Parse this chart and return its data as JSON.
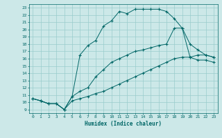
{
  "xlabel": "Humidex (Indice chaleur)",
  "bg_color": "#cce8e8",
  "grid_color": "#99cccc",
  "line_color": "#006666",
  "xlim": [
    -0.5,
    23.5
  ],
  "ylim": [
    8.5,
    23.5
  ],
  "xticks": [
    0,
    1,
    2,
    3,
    4,
    5,
    6,
    7,
    8,
    9,
    10,
    11,
    12,
    13,
    14,
    15,
    16,
    17,
    18,
    19,
    20,
    21,
    22,
    23
  ],
  "yticks": [
    9,
    10,
    11,
    12,
    13,
    14,
    15,
    16,
    17,
    18,
    19,
    20,
    21,
    22,
    23
  ],
  "line1_x": [
    0,
    1,
    2,
    3,
    4,
    5,
    6,
    7,
    8,
    9,
    10,
    11,
    12,
    13,
    14,
    15,
    16,
    17,
    18,
    19,
    20,
    21,
    22,
    23
  ],
  "line1_y": [
    10.5,
    10.2,
    9.8,
    9.8,
    9.0,
    10.8,
    16.5,
    17.8,
    18.5,
    20.5,
    21.2,
    22.5,
    22.2,
    22.8,
    22.8,
    22.8,
    22.8,
    22.5,
    21.5,
    20.2,
    18.0,
    17.2,
    16.5,
    16.2
  ],
  "line2_x": [
    0,
    1,
    2,
    3,
    4,
    5,
    6,
    7,
    8,
    9,
    10,
    11,
    12,
    13,
    14,
    15,
    16,
    17,
    18,
    19,
    20,
    21,
    22,
    23
  ],
  "line2_y": [
    10.5,
    10.2,
    9.8,
    9.8,
    9.0,
    10.8,
    11.5,
    12.0,
    13.5,
    14.5,
    15.5,
    16.0,
    16.5,
    17.0,
    17.2,
    17.5,
    17.8,
    18.0,
    20.2,
    20.2,
    16.2,
    16.5,
    16.5,
    16.2
  ],
  "line3_x": [
    0,
    1,
    2,
    3,
    4,
    5,
    6,
    7,
    8,
    9,
    10,
    11,
    12,
    13,
    14,
    15,
    16,
    17,
    18,
    19,
    20,
    21,
    22,
    23
  ],
  "line3_y": [
    10.5,
    10.2,
    9.8,
    9.8,
    9.0,
    10.2,
    10.5,
    10.8,
    11.2,
    11.5,
    12.0,
    12.5,
    13.0,
    13.5,
    14.0,
    14.5,
    15.0,
    15.5,
    16.0,
    16.2,
    16.2,
    15.8,
    15.8,
    15.5
  ]
}
